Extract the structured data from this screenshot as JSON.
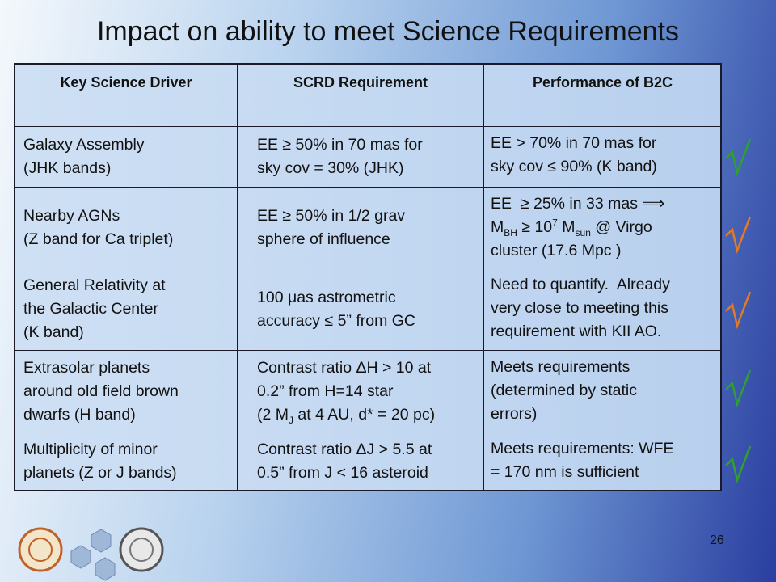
{
  "title": "Impact on ability to meet Science Requirements",
  "table": {
    "header": [
      "Key Science Driver",
      "SCRD Requirement",
      "Performance of B2C"
    ],
    "rows": [
      [
        [
          [
            "Galaxy Assembly"
          ],
          [
            "(JHK bands)"
          ]
        ],
        [
          [
            "EE ≥ 50% in 70 mas for"
          ],
          [
            "sky cov = 30% (JHK)"
          ]
        ],
        [
          [
            "EE > 70% in 70 mas for"
          ],
          [
            "sky cov ≤ 90% (K band)"
          ]
        ]
      ],
      [
        [
          [
            "Nearby AGNs"
          ],
          [
            "(Z band for Ca triplet)"
          ]
        ],
        [
          [
            "EE ≥ 50% in 1/2 grav"
          ],
          [
            "sphere of influence"
          ]
        ],
        [
          [
            "EE  ≥ 25% in 33 mas ⟹"
          ],
          [
            "M",
            {
              "sub": "BH"
            },
            " ≥ 10",
            {
              "sup": "7"
            },
            " M",
            {
              "sub": "sun"
            },
            " @ Virgo"
          ],
          [
            "cluster (17.6 Mpc )"
          ]
        ]
      ],
      [
        [
          [
            "General Relativity at"
          ],
          [
            "the Galactic Center"
          ],
          [
            "(K band)"
          ]
        ],
        [
          [
            "100 μas astrometric"
          ],
          [
            "accuracy ≤ 5” from GC"
          ]
        ],
        [
          [
            "Need to quantify.  Already"
          ],
          [
            "very close to meeting this"
          ],
          [
            "requirement with KII AO."
          ]
        ]
      ],
      [
        [
          [
            "Extrasolar planets"
          ],
          [
            "around old field brown"
          ],
          [
            "dwarfs (H band)"
          ]
        ],
        [
          [
            "Contrast ratio ΔH > 10 at"
          ],
          [
            "0.2” from H=14 star"
          ],
          [
            "(2 M",
            {
              "sub": "J"
            },
            " at 4 AU, d* = 20 pc)"
          ]
        ],
        [
          [
            "Meets requirements"
          ],
          [
            "(determined by static"
          ],
          [
            "errors)"
          ]
        ]
      ],
      [
        [
          [
            "Multiplicity of minor"
          ],
          [
            "planets (Z or J bands)"
          ]
        ],
        [
          [
            "Contrast ratio ΔJ > 5.5 at"
          ],
          [
            "0.5” from J < 16 asteroid"
          ]
        ],
        [
          [
            "Meets requirements: WFE"
          ],
          [
            "= 170 nm is sufficient"
          ]
        ]
      ]
    ]
  },
  "page_number": "26"
}
